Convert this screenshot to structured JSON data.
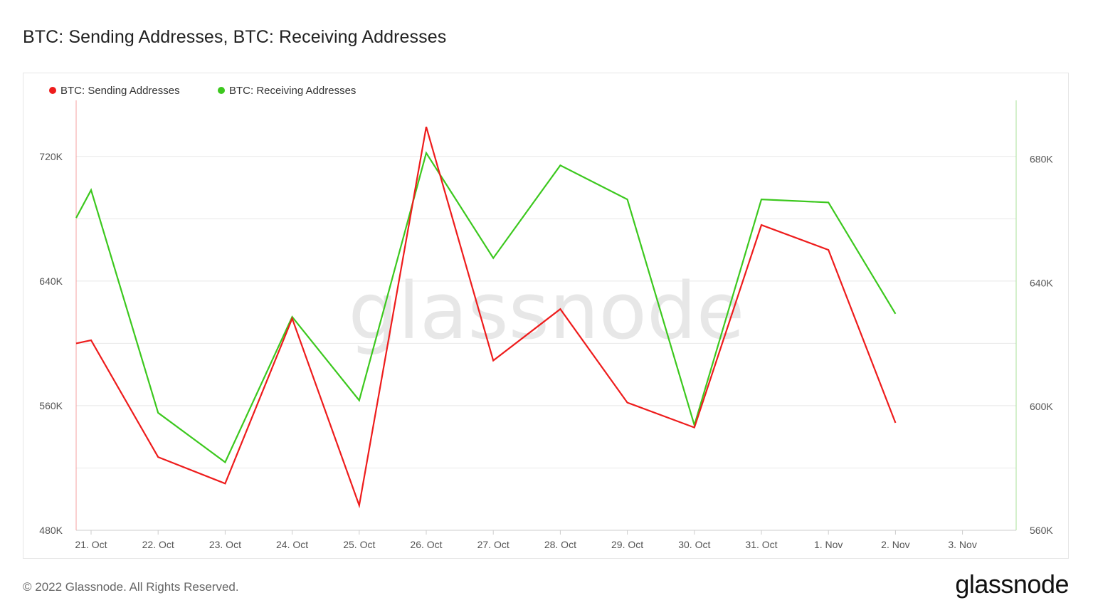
{
  "title": "BTC: Sending Addresses, BTC: Receiving Addresses",
  "footer": "© 2022 Glassnode. All Rights Reserved.",
  "brand": "glassnode",
  "watermark": "glassnode",
  "colors": {
    "sending": "#ee1c1c",
    "receiving": "#3cc81e",
    "grid": "#e8e8e8"
  },
  "chart_data": {
    "type": "line",
    "title": "BTC: Sending Addresses, BTC: Receiving Addresses",
    "legend_position": "top-left",
    "grid": true,
    "x": [
      "2022-10-20",
      "2022-10-21",
      "2022-10-22",
      "2022-10-23",
      "2022-10-24",
      "2022-10-25",
      "2022-10-26",
      "2022-10-27",
      "2022-10-28",
      "2022-10-29",
      "2022-10-30",
      "2022-10-31",
      "2022-11-01",
      "2022-11-02"
    ],
    "x_tick_labels": [
      "21. Oct",
      "22. Oct",
      "23. Oct",
      "24. Oct",
      "25. Oct",
      "26. Oct",
      "27. Oct",
      "28. Oct",
      "29. Oct",
      "30. Oct",
      "31. Oct",
      "1. Nov",
      "2. Nov",
      "3. Nov"
    ],
    "y_left": {
      "ticks": [
        480000,
        560000,
        640000,
        720000
      ],
      "tick_labels": [
        "480K",
        "560K",
        "640K",
        "720K"
      ],
      "range": [
        480000,
        756000
      ]
    },
    "y_right": {
      "ticks": [
        560000,
        600000,
        640000,
        680000
      ],
      "tick_labels": [
        "560K",
        "600K",
        "640K",
        "680K"
      ],
      "range": [
        560000,
        699000
      ]
    },
    "series": [
      {
        "name": "BTC: Sending Addresses",
        "axis": "left",
        "values": [
          600000,
          602000,
          527000,
          510000,
          616000,
          496000,
          739000,
          589000,
          622000,
          562000,
          546000,
          676000,
          660000,
          549000
        ]
      },
      {
        "name": "BTC: Receiving Addresses",
        "axis": "right",
        "values": [
          661000,
          670000,
          598000,
          582000,
          629000,
          602000,
          682000,
          648000,
          678000,
          667000,
          594000,
          667000,
          666000,
          630000
        ]
      }
    ]
  }
}
